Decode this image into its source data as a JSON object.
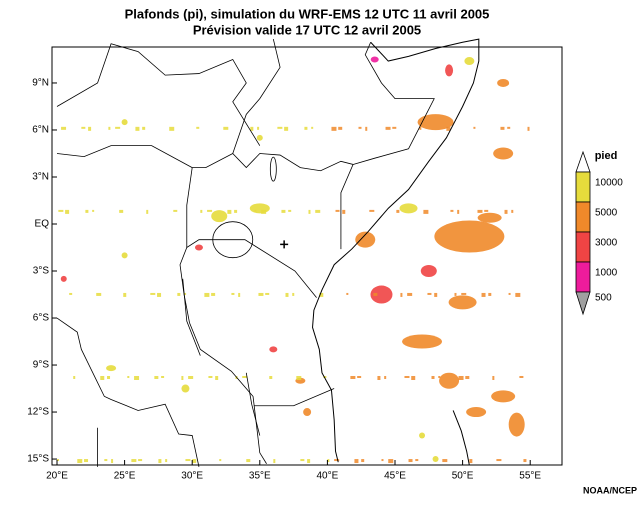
{
  "title": "Plafonds (pi), simulation du WRF-EMS 12 UTC 11 avril 2005",
  "subtitle": "Prévision valide 17 UTC 12 avril 2005",
  "lat_ticks": [
    {
      "value": 9,
      "label": "9°N"
    },
    {
      "value": 6,
      "label": "6°N"
    },
    {
      "value": 3,
      "label": "3°N"
    },
    {
      "value": 0,
      "label": "EQ"
    },
    {
      "value": -3,
      "label": "3°S"
    },
    {
      "value": -6,
      "label": "6°S"
    },
    {
      "value": -9,
      "label": "9°S"
    },
    {
      "value": -12,
      "label": "12°S"
    },
    {
      "value": -15,
      "label": "15°S"
    }
  ],
  "lon_ticks": [
    {
      "value": 20,
      "label": "20°E"
    },
    {
      "value": 25,
      "label": "25°E"
    },
    {
      "value": 30,
      "label": "30°E"
    },
    {
      "value": 35,
      "label": "35°E"
    },
    {
      "value": 40,
      "label": "40°E"
    },
    {
      "value": 45,
      "label": "45°E"
    },
    {
      "value": 50,
      "label": "50°E"
    },
    {
      "value": 55,
      "label": "55°E"
    }
  ],
  "legend": {
    "title": "pied",
    "levels": [
      {
        "value": 10000,
        "color": "#e6dc3c"
      },
      {
        "value": 5000,
        "color": "#f0892a"
      },
      {
        "value": 3000,
        "color": "#f04444"
      },
      {
        "value": 1000,
        "color": "#ee1c9c"
      },
      {
        "value": 500,
        "color": "#a0a0a0"
      }
    ]
  },
  "credit": "NOAA/NCEP"
}
